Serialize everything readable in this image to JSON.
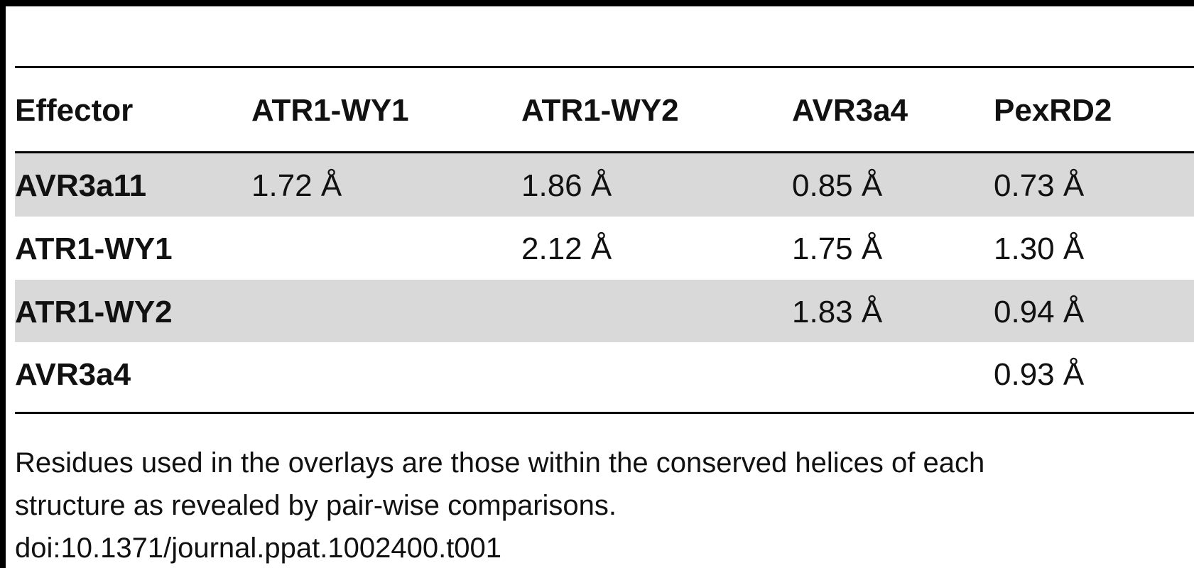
{
  "table": {
    "header": [
      "Effector",
      "ATR1-WY1",
      "ATR1-WY2",
      "AVR3a4",
      "PexRD2"
    ],
    "rows": [
      [
        "AVR3a11",
        "1.72 Å",
        "1.86 Å",
        "0.85 Å",
        "0.73 Å"
      ],
      [
        "ATR1-WY1",
        null,
        "2.12 Å",
        "1.75 Å",
        "1.30 Å"
      ],
      [
        "ATR1-WY2",
        null,
        null,
        "1.83 Å",
        "0.94 Å"
      ],
      [
        "AVR3a4",
        null,
        null,
        null,
        "0.93 Å"
      ]
    ]
  },
  "footnote": [
    "Residues used in the overlays are those within the conserved helices of each",
    "structure as revealed by pair-wise comparisons."
  ],
  "doi": "doi:10.1371/journal.ppat.1002400.t001"
}
